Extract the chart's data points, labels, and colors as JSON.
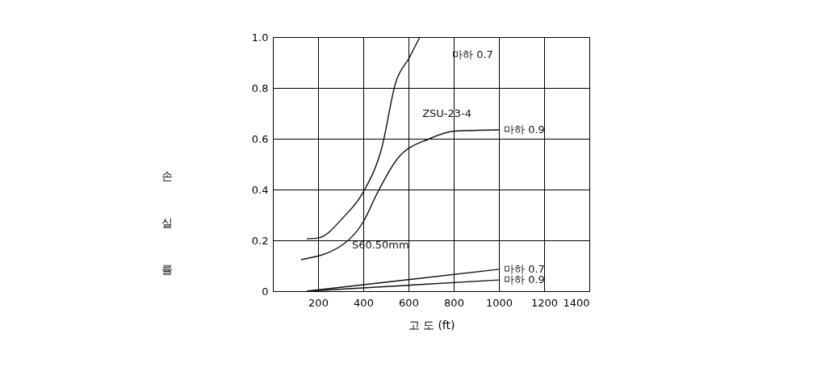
{
  "chart_data": {
    "type": "line",
    "xlabel": "고 도 (ft)",
    "ylabel": "손\n실\n률",
    "xlim": [
      0,
      1400
    ],
    "ylim": [
      0,
      1
    ],
    "xticks": [
      200,
      400,
      600,
      800,
      1000,
      1200,
      1400
    ],
    "yticks": [
      0,
      0.2,
      0.4,
      0.6,
      0.8,
      {
        "value": 1,
        "label": "1.0"
      }
    ],
    "grid": true,
    "marker": "none",
    "line_style": "solid",
    "series": [
      {
        "name": "마하 0.7",
        "color": "#111111",
        "x": [
          150,
          204,
          311,
          400,
          482,
          543,
          604,
          650
        ],
        "values": [
          0.206,
          0.21,
          0.29,
          0.39,
          0.565,
          0.82,
          0.92,
          1.0
        ]
      },
      {
        "name": "마하 0.9",
        "color": "#111111",
        "x": [
          125,
          311,
          400,
          464,
          550,
          693,
          807,
          1000
        ],
        "values": [
          0.124,
          0.184,
          0.273,
          0.39,
          0.52,
          0.6,
          0.63,
          0.635
        ]
      },
      {
        "name": "마하 0.7",
        "color": "#111111",
        "x": [
          150,
          1000
        ],
        "values": [
          0,
          0.086
        ]
      },
      {
        "name": "마하 0.9",
        "color": "#111111",
        "x": [
          150,
          1000
        ],
        "values": [
          0,
          0.044
        ]
      }
    ],
    "annotations": [
      "ZSU-23-4",
      "S60.50mm"
    ]
  }
}
